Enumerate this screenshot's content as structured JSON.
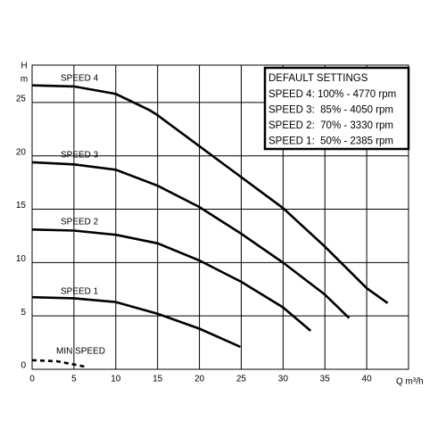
{
  "chart_data": {
    "type": "line",
    "x_label": "Q m³/h",
    "y_label": {
      "symbol": "H",
      "unit": "m"
    },
    "xlim": [
      0,
      45
    ],
    "xticks": [
      0,
      5,
      10,
      15,
      20,
      25,
      30,
      35,
      40
    ],
    "ylim": [
      0,
      28.5
    ],
    "yticks": [
      0,
      5,
      10,
      15,
      20,
      25
    ],
    "grid": true,
    "series": [
      {
        "name": "SPEED 4",
        "color": "#000000",
        "style": "solid",
        "x": [
          0,
          5,
          10,
          14,
          15,
          20,
          25,
          30,
          35,
          40,
          42.5
        ],
        "values": [
          26.6,
          26.5,
          25.8,
          24.3,
          23.8,
          20.9,
          18,
          15.1,
          11.5,
          7.6,
          6.2
        ]
      },
      {
        "name": "SPEED 3",
        "color": "#000000",
        "style": "solid",
        "x": [
          0,
          5,
          10,
          15,
          20,
          25,
          30,
          35,
          37.9
        ],
        "values": [
          19.4,
          19.2,
          18.7,
          17.2,
          15.2,
          12.7,
          10,
          7,
          4.8
        ]
      },
      {
        "name": "SPEED 2",
        "color": "#000000",
        "style": "solid",
        "x": [
          0,
          5,
          10,
          15,
          20,
          25,
          30,
          33.3
        ],
        "values": [
          13.1,
          13,
          12.6,
          11.8,
          10.2,
          8.2,
          5.8,
          3.6
        ]
      },
      {
        "name": "SPEED 1",
        "color": "#000000",
        "style": "solid",
        "x": [
          0,
          5,
          10,
          15,
          20,
          24.9
        ],
        "values": [
          6.75,
          6.65,
          6.3,
          5.2,
          3.8,
          2.1
        ]
      },
      {
        "name": "MIN SPEED",
        "color": "#000000",
        "style": "dashed",
        "x": [
          0,
          3,
          6.3
        ],
        "values": [
          0.85,
          0.75,
          0.25
        ]
      }
    ],
    "settings_box": {
      "title": "DEFAULT SETTINGS",
      "lines": [
        "SPEED 4: 100% - 4770 rpm",
        "SPEED 3:  85% - 4050 rpm",
        "SPEED 2:  70% - 3330 rpm",
        "SPEED 1:  50% - 2385 rpm"
      ]
    }
  }
}
